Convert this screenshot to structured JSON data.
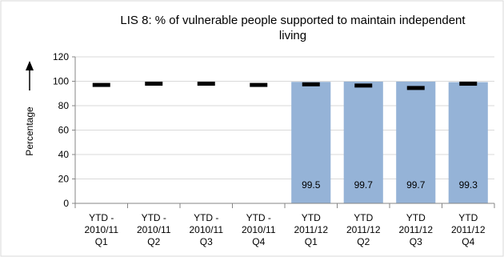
{
  "chart_data": {
    "type": "bar",
    "title_line1": "LIS 8: % of vulnerable people supported to maintain independent",
    "title_line2": "living",
    "ylabel": "Percentage",
    "ylim": [
      0,
      120
    ],
    "yticks": [
      "0",
      "20",
      "40",
      "60",
      "80",
      "100",
      "120"
    ],
    "categories": [
      [
        "YTD -",
        "2010/11",
        "Q1"
      ],
      [
        "YTD -",
        "2010/11",
        "Q2"
      ],
      [
        "YTD -",
        "2010/11",
        "Q3"
      ],
      [
        "YTD -",
        "2010/11",
        "Q4"
      ],
      [
        "YTD",
        "2011/12",
        "Q1"
      ],
      [
        "YTD",
        "2011/12",
        "Q2"
      ],
      [
        "YTD",
        "2011/12",
        "Q3"
      ],
      [
        "YTD",
        "2011/12",
        "Q4"
      ]
    ],
    "series": [
      {
        "values": [
          null,
          null,
          null,
          null,
          99.5,
          99.7,
          99.7,
          99.3
        ],
        "data_labels": [
          "",
          "",
          "",
          "",
          "99.5",
          "99.7",
          "99.7",
          "99.3"
        ],
        "color": "#95b3d7"
      },
      {
        "marker": "dash",
        "values": [
          97,
          98,
          98,
          97,
          97.5,
          96.5,
          94.5,
          98
        ],
        "color": "#000000"
      }
    ],
    "grid": true,
    "legend": "none",
    "axis_arrow": "up"
  }
}
